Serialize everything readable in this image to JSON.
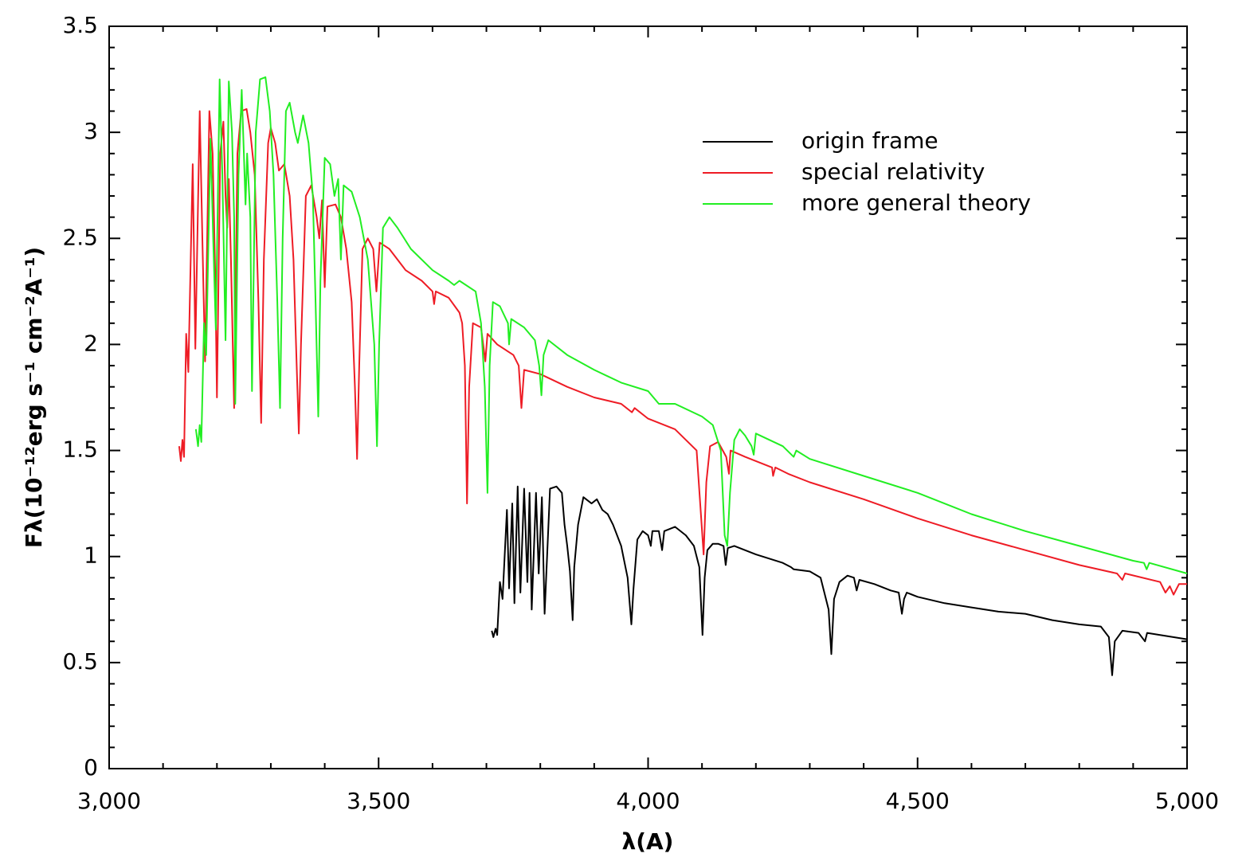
{
  "chart_data": {
    "type": "line",
    "xlabel": "λ(A)",
    "ylabel": "Fλ(10⁻¹²erg s⁻¹ cm⁻²A⁻¹)",
    "xlim": [
      3000,
      5000
    ],
    "ylim": [
      0,
      3.5
    ],
    "xticks": [
      {
        "value": 3000,
        "label": "3,000"
      },
      {
        "value": 3500,
        "label": "3,500"
      },
      {
        "value": 4000,
        "label": "4,000"
      },
      {
        "value": 4500,
        "label": "4,500"
      },
      {
        "value": 5000,
        "label": "5,000"
      }
    ],
    "yticks": [
      0,
      0.5,
      1,
      1.5,
      2,
      2.5,
      3,
      3.5
    ],
    "xminorticks": [
      3100,
      3200,
      3300,
      3400,
      3600,
      3700,
      3800,
      3900,
      4100,
      4200,
      4300,
      4400,
      4600,
      4700,
      4800,
      4900
    ],
    "yminorticks": [
      0.1,
      0.2,
      0.3,
      0.4,
      0.6,
      0.7,
      0.8,
      0.9,
      1.1,
      1.2,
      1.3,
      1.4,
      1.6,
      1.7,
      1.8,
      1.9,
      2.1,
      2.2,
      2.3,
      2.4,
      2.6,
      2.7,
      2.8,
      2.9,
      3.1,
      3.2,
      3.3,
      3.4
    ],
    "legend": "upper right",
    "series": [
      {
        "name": "origin frame",
        "color": "#000000",
        "x": [
          3710,
          3713,
          3717,
          3720,
          3725,
          3730,
          3738,
          3742,
          3748,
          3752,
          3758,
          3763,
          3770,
          3776,
          3780,
          3784,
          3792,
          3797,
          3803,
          3808,
          3818,
          3830,
          3840,
          3845,
          3850,
          3855,
          3860,
          3863,
          3870,
          3880,
          3895,
          3905,
          3915,
          3925,
          3935,
          3950,
          3962,
          3969,
          3973,
          3980,
          3990,
          4000,
          4005,
          4008,
          4020,
          4026,
          4030,
          4050,
          4070,
          4085,
          4095,
          4101,
          4105,
          4110,
          4120,
          4130,
          4140,
          4144,
          4148,
          4160,
          4200,
          4250,
          4265,
          4270,
          4300,
          4320,
          4335,
          4340,
          4345,
          4355,
          4370,
          4382,
          4387,
          4392,
          4420,
          4450,
          4465,
          4471,
          4475,
          4480,
          4500,
          4550,
          4600,
          4650,
          4700,
          4750,
          4800,
          4840,
          4855,
          4861,
          4866,
          4880,
          4910,
          4922,
          4926,
          4950,
          5000
        ],
        "values": [
          0.65,
          0.62,
          0.66,
          0.63,
          0.88,
          0.8,
          1.22,
          0.85,
          1.25,
          0.78,
          1.33,
          0.83,
          1.32,
          0.88,
          1.3,
          0.75,
          1.3,
          0.92,
          1.28,
          0.73,
          1.32,
          1.33,
          1.3,
          1.15,
          1.05,
          0.93,
          0.7,
          0.95,
          1.15,
          1.28,
          1.25,
          1.27,
          1.22,
          1.2,
          1.15,
          1.05,
          0.9,
          0.68,
          0.85,
          1.08,
          1.12,
          1.1,
          1.05,
          1.12,
          1.12,
          1.03,
          1.12,
          1.14,
          1.1,
          1.05,
          0.95,
          0.63,
          0.9,
          1.03,
          1.06,
          1.06,
          1.05,
          0.96,
          1.04,
          1.05,
          1.01,
          0.97,
          0.95,
          0.94,
          0.93,
          0.9,
          0.75,
          0.54,
          0.8,
          0.88,
          0.91,
          0.9,
          0.84,
          0.89,
          0.87,
          0.84,
          0.83,
          0.73,
          0.8,
          0.83,
          0.81,
          0.78,
          0.76,
          0.74,
          0.73,
          0.7,
          0.68,
          0.67,
          0.62,
          0.44,
          0.6,
          0.65,
          0.64,
          0.6,
          0.64,
          0.63,
          0.61
        ]
      },
      {
        "name": "special relativity",
        "color": "#ee1c25",
        "x": [
          3130,
          3133,
          3136,
          3139,
          3143,
          3147,
          3155,
          3160,
          3168,
          3173,
          3178,
          3186,
          3192,
          3197,
          3200,
          3206,
          3212,
          3216,
          3219,
          3222,
          3226,
          3232,
          3238,
          3245,
          3255,
          3262,
          3270,
          3277,
          3282,
          3287,
          3295,
          3300,
          3308,
          3315,
          3325,
          3335,
          3342,
          3348,
          3352,
          3356,
          3365,
          3375,
          3385,
          3390,
          3395,
          3400,
          3405,
          3420,
          3430,
          3440,
          3450,
          3456,
          3460,
          3464,
          3470,
          3480,
          3490,
          3496,
          3502,
          3520,
          3550,
          3580,
          3600,
          3603,
          3606,
          3630,
          3650,
          3655,
          3660,
          3664,
          3668,
          3675,
          3690,
          3698,
          3702,
          3720,
          3750,
          3760,
          3765,
          3770,
          3800,
          3850,
          3900,
          3950,
          3970,
          3975,
          4000,
          4050,
          4090,
          4098,
          4103,
          4108,
          4115,
          4130,
          4145,
          4150,
          4153,
          4180,
          4230,
          4232,
          4236,
          4260,
          4300,
          4400,
          4500,
          4600,
          4700,
          4800,
          4870,
          4880,
          4885,
          4950,
          4960,
          4968,
          4975,
          4985,
          5000
        ],
        "values": [
          1.52,
          1.45,
          1.55,
          1.47,
          2.05,
          1.87,
          2.85,
          1.98,
          3.1,
          2.5,
          1.92,
          3.1,
          2.9,
          2.3,
          1.75,
          2.9,
          3.05,
          2.7,
          2.55,
          2.78,
          2.4,
          1.7,
          2.9,
          3.1,
          3.11,
          3.0,
          2.8,
          2.2,
          1.63,
          2.4,
          2.95,
          3.02,
          2.95,
          2.82,
          2.85,
          2.7,
          2.4,
          1.9,
          1.58,
          2.0,
          2.7,
          2.75,
          2.6,
          2.5,
          2.68,
          2.27,
          2.65,
          2.66,
          2.6,
          2.45,
          2.2,
          1.8,
          1.46,
          1.9,
          2.45,
          2.5,
          2.45,
          2.25,
          2.48,
          2.45,
          2.35,
          2.3,
          2.25,
          2.19,
          2.25,
          2.22,
          2.15,
          2.1,
          1.9,
          1.25,
          1.8,
          2.1,
          2.08,
          1.92,
          2.05,
          2.0,
          1.95,
          1.9,
          1.7,
          1.88,
          1.86,
          1.8,
          1.75,
          1.72,
          1.68,
          1.7,
          1.65,
          1.6,
          1.5,
          1.2,
          1.01,
          1.35,
          1.52,
          1.54,
          1.47,
          1.39,
          1.5,
          1.47,
          1.42,
          1.38,
          1.42,
          1.39,
          1.35,
          1.27,
          1.18,
          1.1,
          1.03,
          0.96,
          0.92,
          0.89,
          0.92,
          0.88,
          0.83,
          0.86,
          0.82,
          0.87,
          0.87
        ]
      },
      {
        "name": "more general theory",
        "color": "#22ee22",
        "x": [
          3161,
          3165,
          3168,
          3171,
          3176,
          3180,
          3188,
          3193,
          3198,
          3205,
          3210,
          3216,
          3222,
          3228,
          3232,
          3234,
          3240,
          3246,
          3250,
          3253,
          3256,
          3262,
          3265,
          3272,
          3280,
          3290,
          3298,
          3305,
          3312,
          3317,
          3322,
          3328,
          3335,
          3345,
          3350,
          3360,
          3370,
          3378,
          3383,
          3388,
          3392,
          3400,
          3410,
          3418,
          3425,
          3430,
          3435,
          3450,
          3465,
          3480,
          3492,
          3497,
          3501,
          3508,
          3520,
          3535,
          3560,
          3600,
          3630,
          3640,
          3650,
          3680,
          3690,
          3697,
          3702,
          3706,
          3712,
          3725,
          3740,
          3742,
          3746,
          3770,
          3790,
          3798,
          3802,
          3806,
          3815,
          3850,
          3900,
          3950,
          4000,
          4020,
          4050,
          4100,
          4120,
          4135,
          4142,
          4147,
          4152,
          4160,
          4170,
          4180,
          4192,
          4196,
          4200,
          4250,
          4270,
          4275,
          4300,
          4400,
          4500,
          4600,
          4700,
          4800,
          4900,
          4920,
          4925,
          4930,
          5000
        ],
        "values": [
          1.6,
          1.52,
          1.62,
          1.54,
          2.1,
          1.95,
          2.97,
          2.5,
          2.07,
          3.25,
          2.8,
          2.02,
          3.24,
          3.0,
          2.6,
          1.72,
          2.8,
          3.2,
          2.9,
          2.66,
          2.9,
          2.6,
          1.78,
          3.0,
          3.25,
          3.26,
          3.1,
          2.8,
          2.2,
          1.7,
          2.5,
          3.1,
          3.14,
          3.0,
          2.95,
          3.08,
          2.95,
          2.7,
          2.2,
          1.66,
          2.3,
          2.88,
          2.85,
          2.7,
          2.78,
          2.4,
          2.75,
          2.72,
          2.6,
          2.4,
          2.0,
          1.52,
          2.0,
          2.55,
          2.6,
          2.55,
          2.45,
          2.35,
          2.3,
          2.28,
          2.3,
          2.25,
          2.1,
          1.8,
          1.3,
          1.9,
          2.2,
          2.18,
          2.1,
          2.0,
          2.12,
          2.08,
          2.02,
          1.9,
          1.76,
          1.95,
          2.02,
          1.95,
          1.88,
          1.82,
          1.78,
          1.72,
          1.72,
          1.66,
          1.62,
          1.5,
          1.1,
          1.05,
          1.3,
          1.55,
          1.6,
          1.57,
          1.52,
          1.48,
          1.58,
          1.52,
          1.47,
          1.5,
          1.46,
          1.38,
          1.3,
          1.2,
          1.12,
          1.05,
          0.98,
          0.97,
          0.94,
          0.97,
          0.92
        ]
      }
    ]
  }
}
